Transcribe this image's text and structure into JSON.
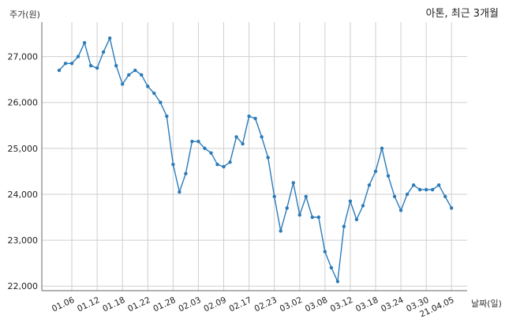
{
  "chart_data": {
    "type": "line",
    "title": "아톤, 최근 3개월",
    "ylabel": "주가(원)",
    "xlabel": "날짜(일)",
    "ylim": [
      21900,
      27750
    ],
    "y_ticks": [
      22000,
      23000,
      24000,
      25000,
      26000,
      27000
    ],
    "y_tick_labels": [
      "22,000",
      "23,000",
      "24,000",
      "25,000",
      "26,000",
      "27,000"
    ],
    "x_tick_labels": [
      "01.06",
      "01.12",
      "01.18",
      "01.22",
      "01.28",
      "02.03",
      "02.09",
      "02.17",
      "02.23",
      "03.02",
      "03.08",
      "03.12",
      "03.18",
      "03.24",
      "03.30",
      "21.04.05"
    ],
    "x_tick_index": [
      2,
      6,
      10,
      14,
      18,
      22,
      26,
      30,
      34,
      38,
      42,
      46,
      50,
      54,
      58,
      62
    ],
    "grid": true,
    "line_color": "#2b7bb9",
    "series": [
      {
        "values": [
          26700,
          26850,
          26850,
          27000,
          27300,
          26800,
          26750,
          27100,
          27400,
          26800,
          26400,
          26600,
          26700,
          26600,
          26350,
          26200,
          26000,
          25700,
          24650,
          24050,
          24450,
          25150,
          25150,
          25000,
          24900,
          24650,
          24600,
          24700,
          25250,
          25100,
          25700,
          25650,
          25250,
          24800,
          23950,
          23200,
          23700,
          24250,
          23550,
          23950,
          23500,
          23500,
          22750,
          22400,
          22100,
          23300,
          23850,
          23450,
          23750,
          24200,
          24500,
          25000,
          24400,
          23950,
          23650,
          24000,
          24200,
          24100,
          24100,
          24100,
          24200,
          23950,
          23700
        ]
      }
    ]
  }
}
